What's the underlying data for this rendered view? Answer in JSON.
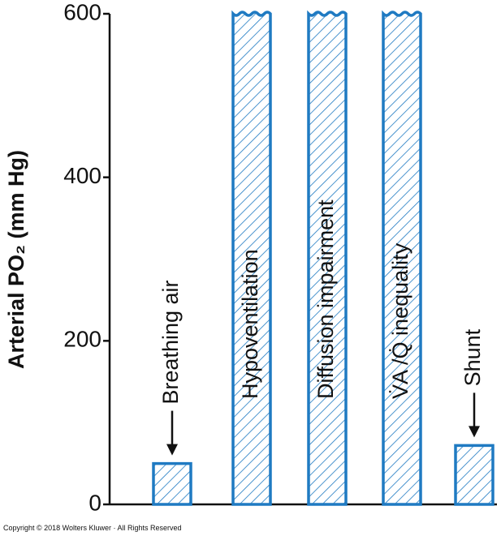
{
  "chart_data": {
    "type": "bar",
    "y_label": "Arterial PO₂ (mm Hg)",
    "categories": [
      "Breathing air",
      "Hypoventilation",
      "Diffusion impairment",
      "V̇A /Q̇ inequality",
      "Shunt"
    ],
    "values": [
      50,
      600,
      600,
      600,
      72
    ],
    "color": "#1f7ac2",
    "ylim": [
      0,
      600
    ],
    "yticks": [
      0,
      200,
      400,
      600
    ],
    "footer": "Copyright © 2018 Wolters Kluwer · All Rights Reserved"
  }
}
